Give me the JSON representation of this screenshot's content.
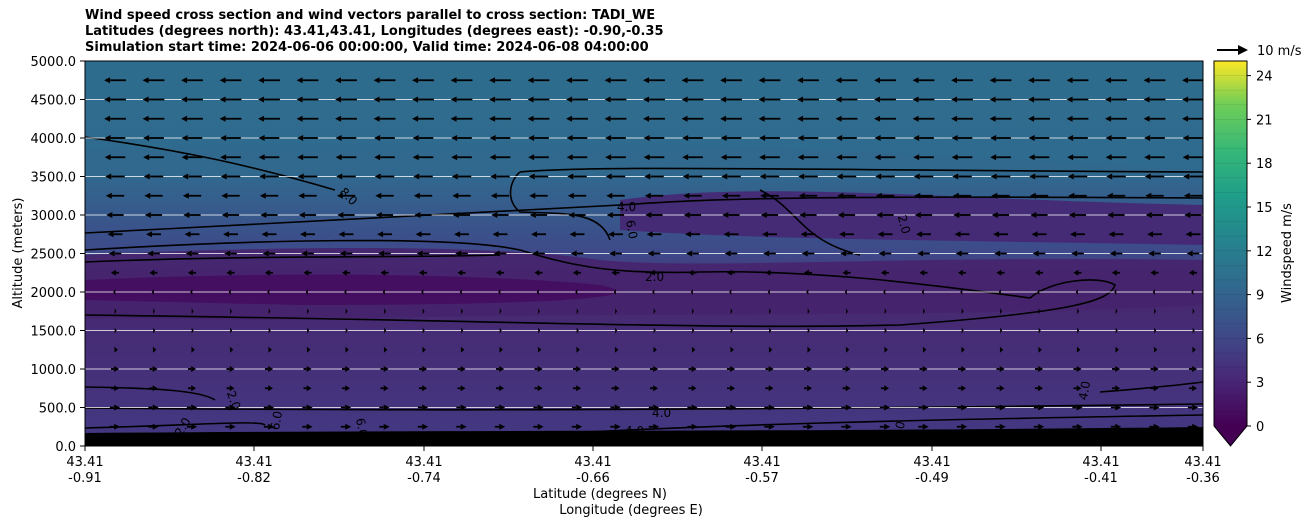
{
  "chart_data": {
    "type": "heatmap",
    "title": [
      "Wind speed cross section and wind vectors parallel to cross section: TADI_WE",
      "Latitudes (degrees north): 43.41,43.41, Longitudes (degrees east): -0.90,-0.35",
      "Simulation start time: 2024-06-06 00:00:00, Valid time: 2024-06-08 04:00:00"
    ],
    "ylabel": "Altitude (meters)",
    "xlabel_lat": "Latitude (degrees N)",
    "xlabel_lon": "Longitude (degrees E)",
    "ylim": [
      0,
      5000
    ],
    "yticks": [
      "0.0",
      "500.0",
      "1000.0",
      "1500.0",
      "2000.0",
      "2500.0",
      "3000.0",
      "3500.0",
      "4000.0",
      "4500.0",
      "5000.0"
    ],
    "xticks": [
      {
        "lat": "43.41",
        "lon": "-0.91"
      },
      {
        "lat": "43.41",
        "lon": "-0.82"
      },
      {
        "lat": "43.41",
        "lon": "-0.74"
      },
      {
        "lat": "43.41",
        "lon": "-0.66"
      },
      {
        "lat": "43.41",
        "lon": "-0.57"
      },
      {
        "lat": "43.41",
        "lon": "-0.49"
      },
      {
        "lat": "43.41",
        "lon": "-0.41"
      },
      {
        "lat": "43.41",
        "lon": "-0.36"
      }
    ],
    "colorbar": {
      "label": "Windspeed m/s",
      "min": 0,
      "max": 25,
      "ticks": [
        "0",
        "3",
        "6",
        "9",
        "12",
        "15",
        "18",
        "21",
        "24"
      ],
      "extend": "min"
    },
    "quiver_key": "10 m/s",
    "contour_labels": [
      "8.0",
      "4.0",
      "6.0",
      "2.0",
      "2.0",
      "4.0",
      "4.0",
      "4.0",
      "2.0",
      "6.0",
      "6.0",
      "2.0",
      "0"
    ],
    "wind_profile": {
      "altitude_m": [
        4750,
        4500,
        4250,
        4000,
        3750,
        3500,
        3250,
        3000,
        2750,
        2500,
        2250,
        2000,
        1750,
        1500,
        1250,
        1000,
        750,
        500,
        250
      ],
      "windspeed_m_s": [
        9.5,
        9.5,
        9.5,
        9.0,
        9.0,
        8.5,
        8.0,
        7.5,
        6.5,
        5.5,
        3.5,
        1.5,
        1.0,
        1.5,
        2.5,
        3.5,
        3.5,
        4.5,
        4.5
      ],
      "direction": [
        "west",
        "west",
        "west",
        "west",
        "west",
        "west",
        "west",
        "west",
        "west",
        "west",
        "west",
        "west",
        "east",
        "east",
        "east",
        "east",
        "east",
        "east",
        "east"
      ]
    }
  }
}
